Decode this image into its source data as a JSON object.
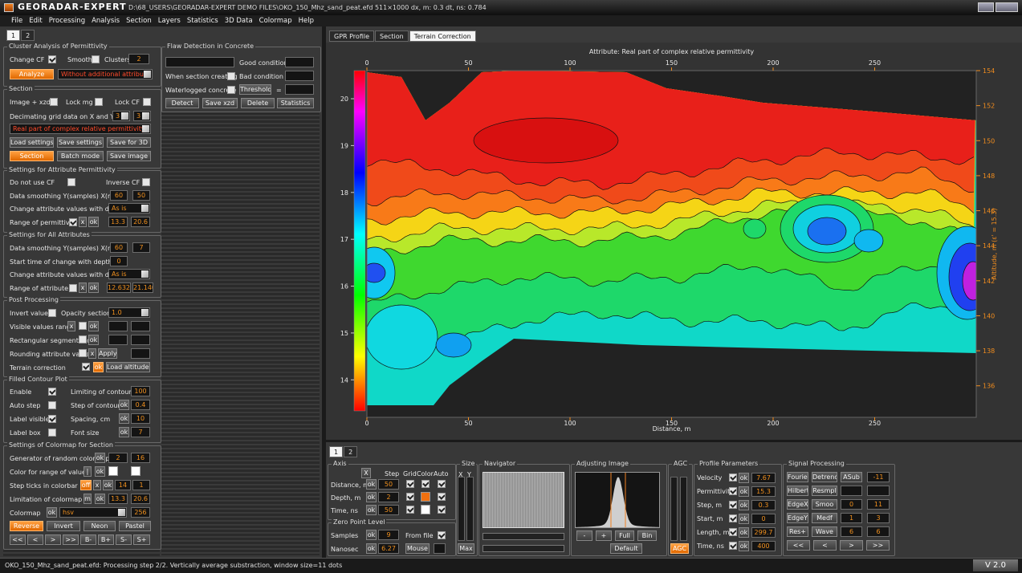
{
  "window": {
    "app": "GEORADAR-EXPERT",
    "file_info": "D:\\68_USERS\\GEORADAR-EXPERT DEMO FILES\\OKO_150_Mhz_sand_peat.efd    511×1000   dx, m: 0.3   dt, ns: 0.784"
  },
  "menu": [
    "File",
    "Edit",
    "Processing",
    "Analysis",
    "Section",
    "Layers",
    "Statistics",
    "3D Data",
    "Colormap",
    "Help"
  ],
  "left_panel": {
    "tabs": [
      "1",
      "2"
    ],
    "sections": [
      {
        "title": "Cluster Analysis of Permittivity",
        "items": [
          "Change CF",
          "Smooth",
          "Clusters",
          "2",
          "Analyze",
          "Without additional attribute"
        ]
      },
      {
        "title": "Section",
        "items": [
          "Image + xzd",
          "Lock mg",
          "Lock CF",
          "Decimating grid data on X and Y",
          "3",
          "3",
          "Real part of complex relative permittivity",
          "Load settings",
          "Save settings",
          "Save for 3D",
          "Section",
          "Batch mode",
          "Save image"
        ]
      },
      {
        "title": "Settings for Attribute Permittivity",
        "items": [
          "Do not use CF",
          "Inverse CF",
          "Data smoothing  Y(samples)  X(m)",
          "60",
          "50",
          "Change attribute values with depth",
          "As is",
          "Range of permittivity",
          "x",
          "ok",
          "13.3",
          "20.6"
        ]
      },
      {
        "title": "Settings for All Attributes",
        "items": [
          "Data smoothing  Y(samples)  X(m)",
          "60",
          "7",
          "Start time of change with depth",
          "0",
          "Change attribute values with depth",
          "As is",
          "Range of attribute",
          "x",
          "ok",
          "12.6322",
          "21.1403"
        ]
      },
      {
        "title": "Post Processing",
        "items": [
          "Invert values",
          "Opacity section",
          "1.0",
          "Visible values range",
          "x",
          "ok",
          "Rectangular segmentation",
          "ok",
          "Rounding attribute values",
          "x",
          "Apply",
          "Terrain correction",
          "ok",
          "Load altitudes"
        ]
      },
      {
        "title": "Filled Contour Plot",
        "items": [
          "Enable",
          "Limiting of contours",
          "100",
          "Auto step",
          "Step of contours",
          "ok",
          "0.4",
          "Label visible",
          "Spacing, cm",
          "ok",
          "10",
          "Label box",
          "Font size",
          "ok",
          "7"
        ]
      },
      {
        "title": "Settings of Colormap for Section",
        "items": [
          "Generator of random colormap",
          "ok",
          "2",
          "16",
          "Color for range of values",
          "|",
          "ok",
          "Step ticks in colorbar",
          "off",
          "x",
          "ok",
          "14",
          "1",
          "Limitation of colormap",
          "m",
          "ok",
          "13.3",
          "20.6",
          "Colormap",
          "ok",
          "hsv",
          "256",
          "Reverse",
          "Invert",
          "Neon",
          "Pastel",
          "<<",
          "<",
          ">",
          ">>",
          "B-",
          "B+",
          "S-",
          "S+"
        ]
      },
      {
        "title": "Flaw Detection in Concrete",
        "items": [
          "Good condition <",
          "When section creating",
          "Bad condition >",
          "Waterlogged concrete",
          "Threshold",
          "=",
          "Detect",
          "Save xzd",
          "Delete",
          "Statistics"
        ]
      }
    ]
  },
  "view_tabs": [
    "GPR Profile",
    "Section",
    "Terrain Correction"
  ],
  "plot": {
    "title": "Attribute:  Real part of complex relative permittivity",
    "x_label": "Distance, m",
    "y2_label": "Altitude, m (ε' = 15.3)",
    "xlim": [
      0,
      300
    ],
    "xticks": [
      0,
      50,
      100,
      150,
      200,
      250
    ],
    "ylim": [
      13.2,
      20.6
    ],
    "yticks": [
      14,
      15,
      16,
      17,
      18,
      19,
      20
    ],
    "y2lim": [
      134.2,
      154
    ],
    "y2ticks": [
      136,
      138,
      140,
      142,
      144,
      146,
      148,
      150,
      152,
      154
    ]
  },
  "bottom_panel": {
    "tabs": [
      "1",
      "2"
    ],
    "groups": [
      {
        "title": "Axis",
        "items": [
          "X",
          "Step",
          "Grid",
          "Color",
          "Auto",
          "Distance, m",
          "ok",
          "50",
          "Depth, m",
          "ok",
          "2",
          "Time, ns",
          "ok",
          "50"
        ]
      },
      {
        "title": "Zero Point Level",
        "items": [
          "Samples",
          "ok",
          "9",
          "From file",
          "Nanosec",
          "ok",
          "6.27",
          "Mouse"
        ]
      },
      {
        "title": "Size",
        "items": [
          "X",
          "Y",
          "Max"
        ]
      },
      {
        "title": "Navigator",
        "items": []
      },
      {
        "title": "Adjusting Image",
        "items": [
          "-",
          "+",
          "Full",
          "Bin",
          "Default"
        ]
      },
      {
        "title": "AGC",
        "items": [
          "AGC"
        ]
      },
      {
        "title": "Profile Parameters",
        "items": [
          "Velocity",
          "ok",
          "7.67",
          "Permittivity",
          "ok",
          "15.3",
          "Step, m",
          "ok",
          "0.3",
          "Start, m",
          "ok",
          "0",
          "Length, m",
          "ok",
          "299.7",
          "Time, ns",
          "ok",
          "400"
        ]
      },
      {
        "title": "Signal Processing",
        "items": [
          "Fourier",
          "Detrend",
          "ASub",
          "-11",
          "Hilbert",
          "Resmpl",
          "EdgeX",
          "Smoo",
          "0",
          "11",
          "EdgeY",
          "Medf",
          "1",
          "3",
          "Res+",
          "Wave",
          "6",
          "6",
          "<<",
          "<",
          ">",
          ">>"
        ]
      }
    ]
  },
  "status": {
    "text": "OKO_150_Mhz_sand_peat.efd:   Processing step 2/2. Vertically average substraction, window size=11 dots",
    "version": "V 2.0"
  }
}
